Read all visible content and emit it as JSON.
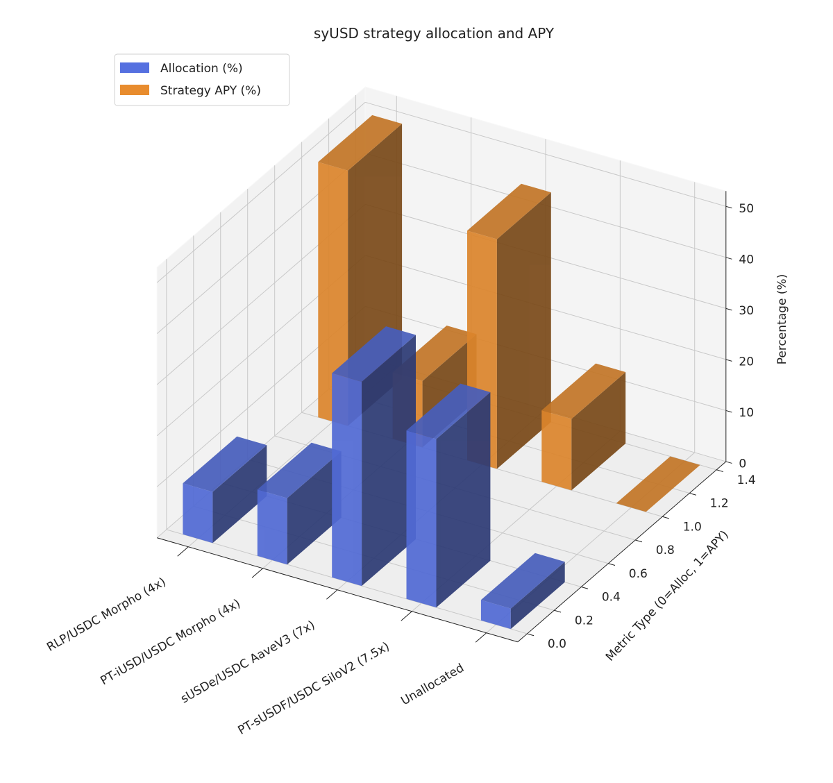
{
  "chart_data": {
    "type": "bar3d",
    "title": "syUSD strategy allocation and APY",
    "categories": [
      "RLP/USDC Morpho (4x)",
      "PT-iUSD/USDC Morpho (4x)",
      "sUSDe/USDC AaveV3 (7x)",
      "PT-sUSDF/USDC SiloV2 (7.5x)",
      "Unallocated"
    ],
    "series": [
      {
        "name": "Allocation (%)",
        "color": "#5570e0",
        "values": [
          10,
          13,
          40,
          33,
          4
        ]
      },
      {
        "name": "Strategy APY (%)",
        "color": "#e88c2e",
        "values": [
          50,
          13,
          45,
          14,
          0
        ]
      }
    ],
    "ylabel": "Metric Type (0=Alloc, 1=APY)",
    "zlabel": "Percentage (%)",
    "xlim": [
      -0.42,
      4.42
    ],
    "ylim": [
      -0.07,
      1.47
    ],
    "zlim": [
      0,
      53
    ],
    "yticks": [
      {
        "value": 0,
        "label": "0.0"
      },
      0.2,
      0.4,
      0.6,
      0.8,
      {
        "value": 1,
        "label": "1.0"
      },
      1.2,
      1.4
    ],
    "zticks": [
      0,
      10,
      20,
      30,
      40,
      50
    ],
    "grid": true,
    "legend": "upper left"
  }
}
